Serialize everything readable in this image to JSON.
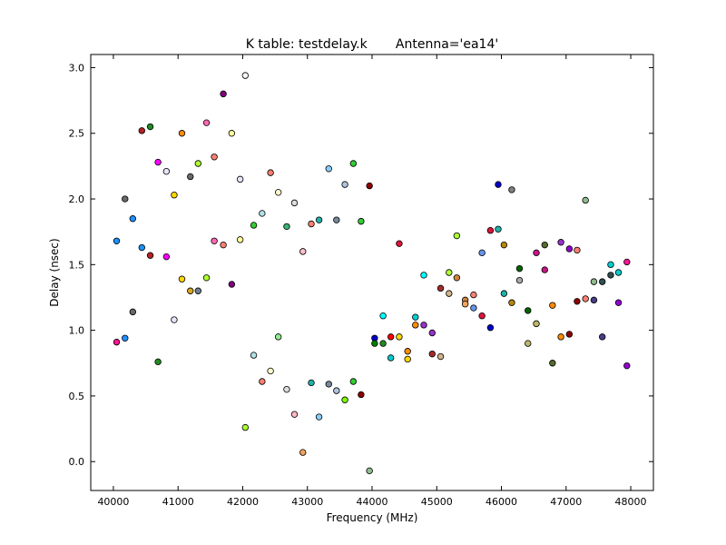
{
  "chart_data": {
    "type": "scatter",
    "title": "K table: testdelay.k       Antenna='ea14'",
    "xlabel": "Frequency (MHz)",
    "ylabel": "Delay (nsec)",
    "xlim": [
      39650,
      48350
    ],
    "ylim": [
      -0.22,
      3.1
    ],
    "x_ticks": [
      40000,
      41000,
      42000,
      43000,
      44000,
      45000,
      46000,
      47000,
      48000
    ],
    "y_ticks": [
      0.0,
      0.5,
      1.0,
      1.5,
      2.0,
      2.5,
      3.0
    ],
    "x_tick_labels": [
      "40000",
      "41000",
      "42000",
      "43000",
      "44000",
      "45000",
      "46000",
      "47000",
      "48000"
    ],
    "y_tick_labels": [
      "0.0",
      "0.5",
      "1.0",
      "1.5",
      "2.0",
      "2.5",
      "3.0"
    ],
    "grid": false,
    "legend": "none",
    "points": [
      {
        "x": 40050,
        "y": 1.68,
        "color": "#1e90ff"
      },
      {
        "x": 40050,
        "y": 0.91,
        "color": "#ff1493"
      },
      {
        "x": 40180,
        "y": 2.0,
        "color": "#696969"
      },
      {
        "x": 40180,
        "y": 0.94,
        "color": "#1e90ff"
      },
      {
        "x": 40300,
        "y": 1.85,
        "color": "#1e90ff"
      },
      {
        "x": 40300,
        "y": 1.14,
        "color": "#696969"
      },
      {
        "x": 40440,
        "y": 2.52,
        "color": "#b22222"
      },
      {
        "x": 40440,
        "y": 1.63,
        "color": "#1e90ff"
      },
      {
        "x": 40570,
        "y": 2.55,
        "color": "#228b22"
      },
      {
        "x": 40570,
        "y": 1.57,
        "color": "#b22222"
      },
      {
        "x": 40690,
        "y": 2.28,
        "color": "#ff00ff"
      },
      {
        "x": 40690,
        "y": 0.76,
        "color": "#228b22"
      },
      {
        "x": 40820,
        "y": 2.21,
        "color": "#e6e6fa"
      },
      {
        "x": 40820,
        "y": 1.56,
        "color": "#ff00ff"
      },
      {
        "x": 40940,
        "y": 2.03,
        "color": "#ffd700"
      },
      {
        "x": 40940,
        "y": 1.08,
        "color": "#e6e6fa"
      },
      {
        "x": 41060,
        "y": 2.5,
        "color": "#ff8c00"
      },
      {
        "x": 41060,
        "y": 1.39,
        "color": "#ffd700"
      },
      {
        "x": 41190,
        "y": 2.17,
        "color": "#696969"
      },
      {
        "x": 41190,
        "y": 1.3,
        "color": "#daa520"
      },
      {
        "x": 41310,
        "y": 2.27,
        "color": "#adff2f"
      },
      {
        "x": 41310,
        "y": 1.3,
        "color": "#708090"
      },
      {
        "x": 41440,
        "y": 2.58,
        "color": "#ff69b4"
      },
      {
        "x": 41440,
        "y": 1.4,
        "color": "#adff2f"
      },
      {
        "x": 41560,
        "y": 2.32,
        "color": "#fa8072"
      },
      {
        "x": 41560,
        "y": 1.68,
        "color": "#ff69b4"
      },
      {
        "x": 41700,
        "y": 2.8,
        "color": "#800080"
      },
      {
        "x": 41700,
        "y": 1.65,
        "color": "#fa8072"
      },
      {
        "x": 41830,
        "y": 2.5,
        "color": "#ffff99"
      },
      {
        "x": 41830,
        "y": 1.35,
        "color": "#800080"
      },
      {
        "x": 41960,
        "y": 2.15,
        "color": "#e6e6fa"
      },
      {
        "x": 41960,
        "y": 1.69,
        "color": "#ffff99"
      },
      {
        "x": 42040,
        "y": 2.94,
        "color": "#f5f5f5"
      },
      {
        "x": 42040,
        "y": 0.26,
        "color": "#adff2f"
      },
      {
        "x": 42170,
        "y": 1.8,
        "color": "#32cd32"
      },
      {
        "x": 42170,
        "y": 0.81,
        "color": "#b0e0e6"
      },
      {
        "x": 42300,
        "y": 1.89,
        "color": "#b0e0e6"
      },
      {
        "x": 42300,
        "y": 0.61,
        "color": "#fa8072"
      },
      {
        "x": 42430,
        "y": 2.2,
        "color": "#fa8072"
      },
      {
        "x": 42430,
        "y": 0.69,
        "color": "#fffacd"
      },
      {
        "x": 42550,
        "y": 2.05,
        "color": "#fffacd"
      },
      {
        "x": 42550,
        "y": 0.95,
        "color": "#90ee90"
      },
      {
        "x": 42680,
        "y": 1.79,
        "color": "#3cb371"
      },
      {
        "x": 42680,
        "y": 0.55,
        "color": "#dcdcdc"
      },
      {
        "x": 42800,
        "y": 1.97,
        "color": "#dcdcdc"
      },
      {
        "x": 42800,
        "y": 0.36,
        "color": "#ffb6c1"
      },
      {
        "x": 42930,
        "y": 1.6,
        "color": "#ffc0cb"
      },
      {
        "x": 42930,
        "y": 0.07,
        "color": "#f4a460"
      },
      {
        "x": 43060,
        "y": 1.81,
        "color": "#fa8072"
      },
      {
        "x": 43060,
        "y": 0.6,
        "color": "#20b2aa"
      },
      {
        "x": 43180,
        "y": 1.84,
        "color": "#20b2aa"
      },
      {
        "x": 43180,
        "y": 0.34,
        "color": "#87cefa"
      },
      {
        "x": 43330,
        "y": 2.23,
        "color": "#87cefa"
      },
      {
        "x": 43330,
        "y": 0.59,
        "color": "#778899"
      },
      {
        "x": 43450,
        "y": 1.84,
        "color": "#778899"
      },
      {
        "x": 43450,
        "y": 0.54,
        "color": "#b0c4de"
      },
      {
        "x": 43580,
        "y": 2.11,
        "color": "#b0c4de"
      },
      {
        "x": 43580,
        "y": 0.47,
        "color": "#7cfc00"
      },
      {
        "x": 43710,
        "y": 2.27,
        "color": "#32cd32"
      },
      {
        "x": 43710,
        "y": 0.61,
        "color": "#32cd32"
      },
      {
        "x": 43830,
        "y": 1.83,
        "color": "#32cd32"
      },
      {
        "x": 43830,
        "y": 0.51,
        "color": "#8b0000"
      },
      {
        "x": 43960,
        "y": 2.1,
        "color": "#8b0000"
      },
      {
        "x": 43960,
        "y": -0.07,
        "color": "#8fbc8f"
      },
      {
        "x": 44040,
        "y": 0.94,
        "color": "#0000cd"
      },
      {
        "x": 44040,
        "y": 0.9,
        "color": "#008000"
      },
      {
        "x": 44170,
        "y": 1.11,
        "color": "#00ffff"
      },
      {
        "x": 44170,
        "y": 0.9,
        "color": "#228b22"
      },
      {
        "x": 44290,
        "y": 0.95,
        "color": "#ff0000"
      },
      {
        "x": 44290,
        "y": 0.79,
        "color": "#00ced1"
      },
      {
        "x": 44420,
        "y": 1.66,
        "color": "#dc143c"
      },
      {
        "x": 44420,
        "y": 0.95,
        "color": "#ffd700"
      },
      {
        "x": 44550,
        "y": 0.84,
        "color": "#ff8c00"
      },
      {
        "x": 44550,
        "y": 0.78,
        "color": "#ffd700"
      },
      {
        "x": 44670,
        "y": 1.1,
        "color": "#00ced1"
      },
      {
        "x": 44670,
        "y": 1.04,
        "color": "#ff8c00"
      },
      {
        "x": 44800,
        "y": 1.42,
        "color": "#00ffff"
      },
      {
        "x": 44800,
        "y": 1.04,
        "color": "#9932cc"
      },
      {
        "x": 44930,
        "y": 0.98,
        "color": "#9932cc"
      },
      {
        "x": 44930,
        "y": 0.82,
        "color": "#a52a2a"
      },
      {
        "x": 45060,
        "y": 1.32,
        "color": "#a52a2a"
      },
      {
        "x": 45060,
        "y": 0.8,
        "color": "#d2b48c"
      },
      {
        "x": 45190,
        "y": 1.44,
        "color": "#adff2f"
      },
      {
        "x": 45190,
        "y": 1.28,
        "color": "#d2b48c"
      },
      {
        "x": 45310,
        "y": 1.72,
        "color": "#adff2f"
      },
      {
        "x": 45310,
        "y": 1.4,
        "color": "#cd853f"
      },
      {
        "x": 45440,
        "y": 1.23,
        "color": "#cd853f"
      },
      {
        "x": 45440,
        "y": 1.2,
        "color": "#f4a460"
      },
      {
        "x": 45570,
        "y": 1.27,
        "color": "#fa8072"
      },
      {
        "x": 45570,
        "y": 1.17,
        "color": "#6495ed"
      },
      {
        "x": 45700,
        "y": 1.59,
        "color": "#6495ed"
      },
      {
        "x": 45700,
        "y": 1.11,
        "color": "#dc143c"
      },
      {
        "x": 45830,
        "y": 1.76,
        "color": "#dc143c"
      },
      {
        "x": 45830,
        "y": 1.02,
        "color": "#0000cd"
      },
      {
        "x": 45950,
        "y": 2.11,
        "color": "#0000cd"
      },
      {
        "x": 45950,
        "y": 1.77,
        "color": "#20b2aa"
      },
      {
        "x": 46040,
        "y": 1.28,
        "color": "#20b2aa"
      },
      {
        "x": 46040,
        "y": 1.65,
        "color": "#b8860b"
      },
      {
        "x": 46160,
        "y": 2.07,
        "color": "#808080"
      },
      {
        "x": 46160,
        "y": 1.21,
        "color": "#b8860b"
      },
      {
        "x": 46280,
        "y": 1.47,
        "color": "#006400"
      },
      {
        "x": 46280,
        "y": 1.38,
        "color": "#a9a9a9"
      },
      {
        "x": 46410,
        "y": 1.15,
        "color": "#006400"
      },
      {
        "x": 46410,
        "y": 0.9,
        "color": "#bdb76b"
      },
      {
        "x": 46540,
        "y": 1.59,
        "color": "#c71585"
      },
      {
        "x": 46540,
        "y": 1.05,
        "color": "#bdb76b"
      },
      {
        "x": 46670,
        "y": 1.65,
        "color": "#556b2f"
      },
      {
        "x": 46670,
        "y": 1.46,
        "color": "#c71585"
      },
      {
        "x": 46790,
        "y": 1.19,
        "color": "#ff8c00"
      },
      {
        "x": 46790,
        "y": 0.75,
        "color": "#556b2f"
      },
      {
        "x": 46920,
        "y": 1.67,
        "color": "#9932cc"
      },
      {
        "x": 46920,
        "y": 0.95,
        "color": "#ff8c00"
      },
      {
        "x": 47050,
        "y": 1.62,
        "color": "#9400d3"
      },
      {
        "x": 47050,
        "y": 0.97,
        "color": "#8b0000"
      },
      {
        "x": 47170,
        "y": 1.61,
        "color": "#fa8072"
      },
      {
        "x": 47170,
        "y": 1.22,
        "color": "#8b0000"
      },
      {
        "x": 47300,
        "y": 1.99,
        "color": "#8fbc8f"
      },
      {
        "x": 47300,
        "y": 1.24,
        "color": "#fa8072"
      },
      {
        "x": 47430,
        "y": 1.37,
        "color": "#8fbc8f"
      },
      {
        "x": 47430,
        "y": 1.23,
        "color": "#483d8b"
      },
      {
        "x": 47560,
        "y": 1.37,
        "color": "#2f4f4f"
      },
      {
        "x": 47560,
        "y": 0.95,
        "color": "#483d8b"
      },
      {
        "x": 47690,
        "y": 1.5,
        "color": "#00ced1"
      },
      {
        "x": 47690,
        "y": 1.42,
        "color": "#2f4f4f"
      },
      {
        "x": 47810,
        "y": 1.44,
        "color": "#00ced1"
      },
      {
        "x": 47810,
        "y": 1.21,
        "color": "#9400d3"
      },
      {
        "x": 47940,
        "y": 1.52,
        "color": "#ff1493"
      },
      {
        "x": 47940,
        "y": 0.73,
        "color": "#9400d3"
      }
    ]
  }
}
